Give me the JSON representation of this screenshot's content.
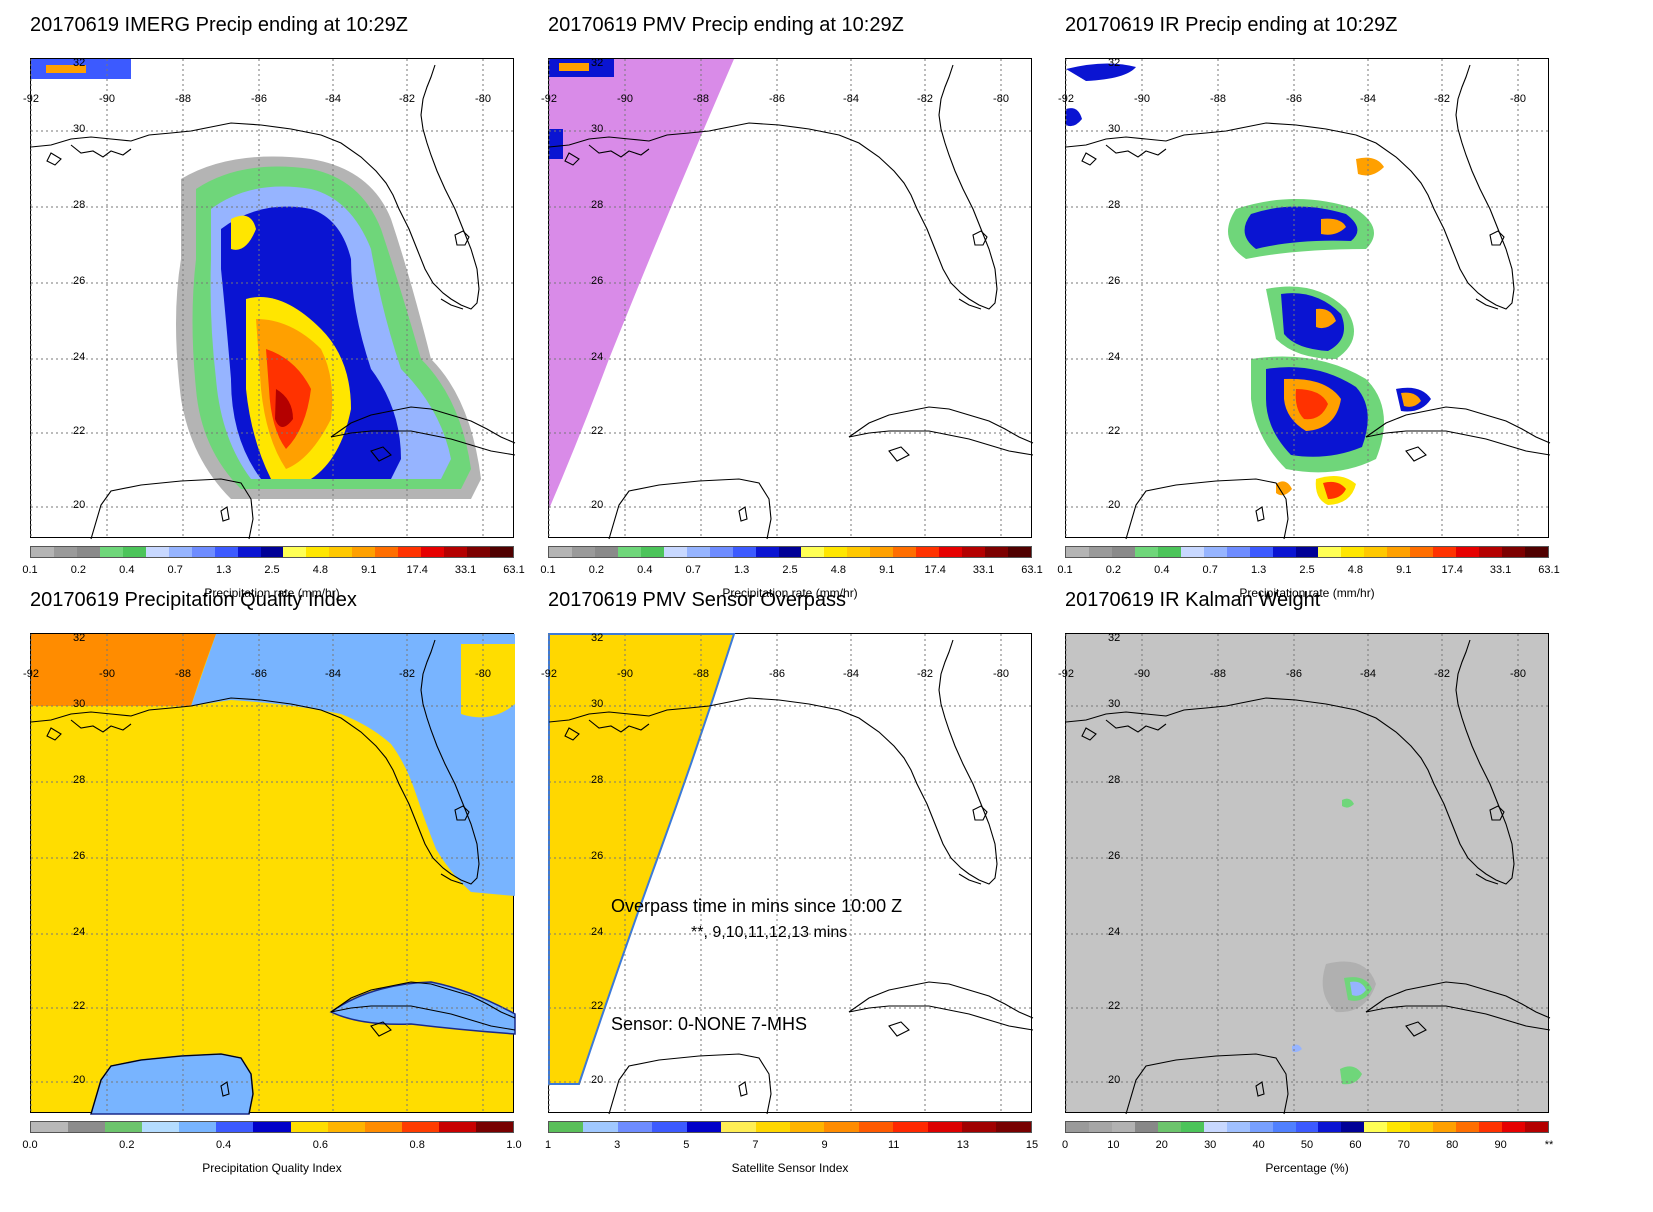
{
  "panels": [
    {
      "title": "20170619 IMERG Precip ending at 10:29Z",
      "cb_label": "Precipitation rate (mm/hr)",
      "cb_ticks": [
        "0.1",
        "0.2",
        "0.4",
        "0.7",
        "1.3",
        "2.5",
        "4.8",
        "9.1",
        "17.4",
        "33.1",
        "63.1"
      ],
      "cb_type": "precip",
      "swath": "none",
      "background": "#ffffff"
    },
    {
      "title": "20170619 PMV Precip ending at 10:29Z",
      "cb_label": "Precipitation rate (mm/hr)",
      "cb_ticks": [
        "0.1",
        "0.2",
        "0.4",
        "0.7",
        "1.3",
        "2.5",
        "4.8",
        "9.1",
        "17.4",
        "33.1",
        "63.1"
      ],
      "cb_type": "precip",
      "swath": "#d98be8",
      "background": "#ffffff"
    },
    {
      "title": "20170619 IR Precip ending at 10:29Z",
      "cb_label": "Precipitation rate (mm/hr)",
      "cb_ticks": [
        "0.1",
        "0.2",
        "0.4",
        "0.7",
        "1.3",
        "2.5",
        "4.8",
        "9.1",
        "17.4",
        "33.1",
        "63.1"
      ],
      "cb_type": "precip",
      "swath": "none",
      "background": "#ffffff"
    },
    {
      "title": "20170619 Precipitation Quality Index",
      "cb_label": "Precipitation Quality Index",
      "cb_ticks": [
        "0.0",
        "0.2",
        "0.4",
        "0.6",
        "0.8",
        "1.0"
      ],
      "cb_type": "pqi",
      "swath": "none",
      "background": "#ffdd00"
    },
    {
      "title": "20170619 PMV Sensor Overpass",
      "cb_label": "Satellite Sensor Index",
      "cb_ticks": [
        "1",
        "3",
        "5",
        "7",
        "9",
        "11",
        "13",
        "15"
      ],
      "cb_type": "sensor",
      "swath": "#ffd700",
      "background": "#ffffff",
      "overpass_line1": "Overpass time in mins since 10:00 Z",
      "overpass_line2": "**, 9,10,11,12,13 mins",
      "sensor_text": "Sensor:   0-NONE  7-MHS"
    },
    {
      "title": "20170619 IR Kalman Weight",
      "cb_label": "Percentage (%)",
      "cb_ticks": [
        "0",
        "10",
        "20",
        "30",
        "40",
        "50",
        "60",
        "70",
        "80",
        "90",
        "**"
      ],
      "cb_type": "pct",
      "swath": "none",
      "background": "#c4c4c4"
    }
  ],
  "lon_labels": [
    "-92",
    "-90",
    "-88",
    "-86",
    "-84",
    "-82",
    "-80"
  ],
  "lat_labels": [
    "32",
    "30",
    "28",
    "26",
    "24",
    "22",
    "20"
  ],
  "colors": {
    "precip": [
      "#b4b4b4",
      "#9a9a9a",
      "#8a8a8a",
      "#6fd67a",
      "#4cc45a",
      "#c8d8ff",
      "#96b4ff",
      "#6e8cff",
      "#3c5aff",
      "#0a14d2",
      "#000096",
      "#ffff55",
      "#ffe600",
      "#ffc800",
      "#ffa000",
      "#ff6e00",
      "#ff3200",
      "#e60000",
      "#b40000",
      "#7d0000",
      "#500000"
    ],
    "pqi": [
      "#b8b8b8",
      "#8c8c8c",
      "#6cc46c",
      "#b4dcff",
      "#78b4ff",
      "#3c5aff",
      "#0000c8",
      "#ffdd00",
      "#ffb400",
      "#ff8c00",
      "#ff3c00",
      "#c80000",
      "#780000"
    ],
    "sensor": [
      "#5abf5a",
      "#a0c8ff",
      "#6e8cff",
      "#3c5aff",
      "#0000c8",
      "#ffee55",
      "#ffd700",
      "#ffb400",
      "#ff8c00",
      "#ff5a00",
      "#ff2800",
      "#dc0000",
      "#a00000",
      "#780000"
    ],
    "pct": [
      "#9a9a9a",
      "#a6a6a6",
      "#b2b2b2",
      "#888888",
      "#6cc46c",
      "#4cc45a",
      "#c8d8ff",
      "#a0c0ff",
      "#78a0ff",
      "#5080ff",
      "#3c5aff",
      "#0a14d2",
      "#000096",
      "#ffff55",
      "#ffe600",
      "#ffc800",
      "#ffa000",
      "#ff6e00",
      "#ff3200",
      "#e60000",
      "#b40000"
    ],
    "coast": "#000000",
    "grid": "#777777"
  }
}
